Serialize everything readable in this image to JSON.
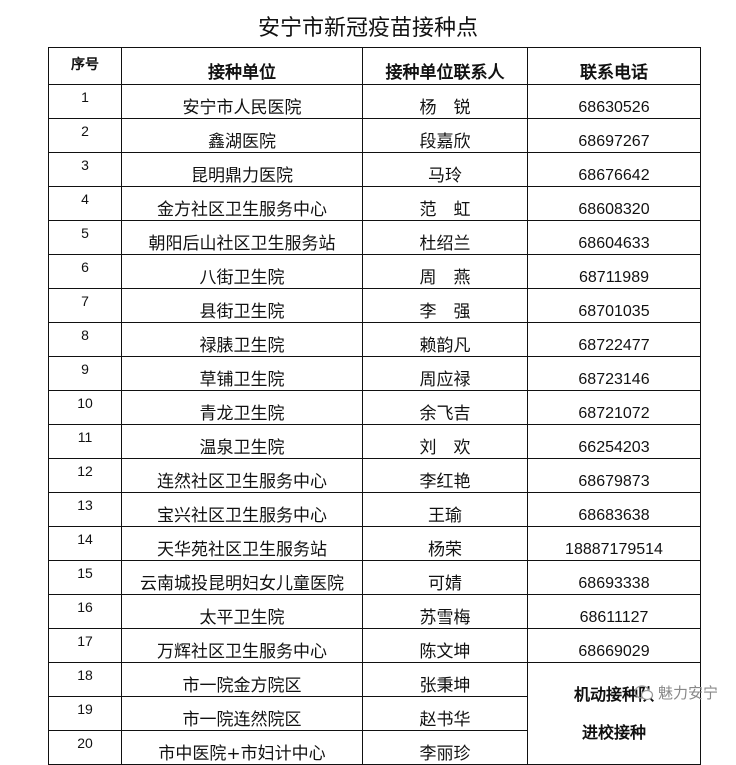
{
  "title": "安宁市新冠疫苗接种点",
  "headers": [
    "序号",
    "接种单位",
    "接种单位联系人",
    "联系电话"
  ],
  "rows": [
    [
      "1",
      "安宁市人民医院",
      "杨　锐",
      "68630526"
    ],
    [
      "2",
      "鑫湖医院",
      "段嘉欣",
      "68697267"
    ],
    [
      "3",
      "昆明鼎力医院",
      "马玲",
      "68676642"
    ],
    [
      "4",
      "金方社区卫生服务中心",
      "范　虹",
      "68608320"
    ],
    [
      "5",
      "朝阳后山社区卫生服务站",
      "杜绍兰",
      "68604633"
    ],
    [
      "6",
      "八街卫生院",
      "周　燕",
      "68711989"
    ],
    [
      "7",
      "县街卫生院",
      "李　强",
      "68701035"
    ],
    [
      "8",
      "禄脿卫生院",
      "赖韵凡",
      "68722477"
    ],
    [
      "9",
      "草铺卫生院",
      "周应禄",
      "68723146"
    ],
    [
      "10",
      "青龙卫生院",
      "余飞吉",
      "68721072"
    ],
    [
      "11",
      "温泉卫生院",
      "刘　欢",
      "66254203"
    ],
    [
      "12",
      "连然社区卫生服务中心",
      "李红艳",
      "68679873"
    ],
    [
      "13",
      "宝兴社区卫生服务中心",
      "王瑜",
      "68683638"
    ],
    [
      "14",
      "天华苑社区卫生服务站",
      "杨荣",
      "18887179514"
    ],
    [
      "15",
      "云南城投昆明妇女儿童医院",
      "可婧",
      "68693338"
    ],
    [
      "16",
      "太平卫生院",
      "苏雪梅",
      "68611127"
    ],
    [
      "17",
      "万辉社区卫生服务中心",
      "陈文坤",
      "68669029"
    ],
    [
      "18",
      "市一院金方院区",
      "张秉坤",
      ""
    ],
    [
      "19",
      "市一院连然院区",
      "赵书华",
      ""
    ],
    [
      "20",
      "市中医院+市妇计中心",
      "李丽珍",
      ""
    ]
  ],
  "merged_phone": [
    "机动接种队",
    "进校接种"
  ],
  "watermark": {
    "icon": "wechat-icon",
    "text": "魅力安宁"
  }
}
